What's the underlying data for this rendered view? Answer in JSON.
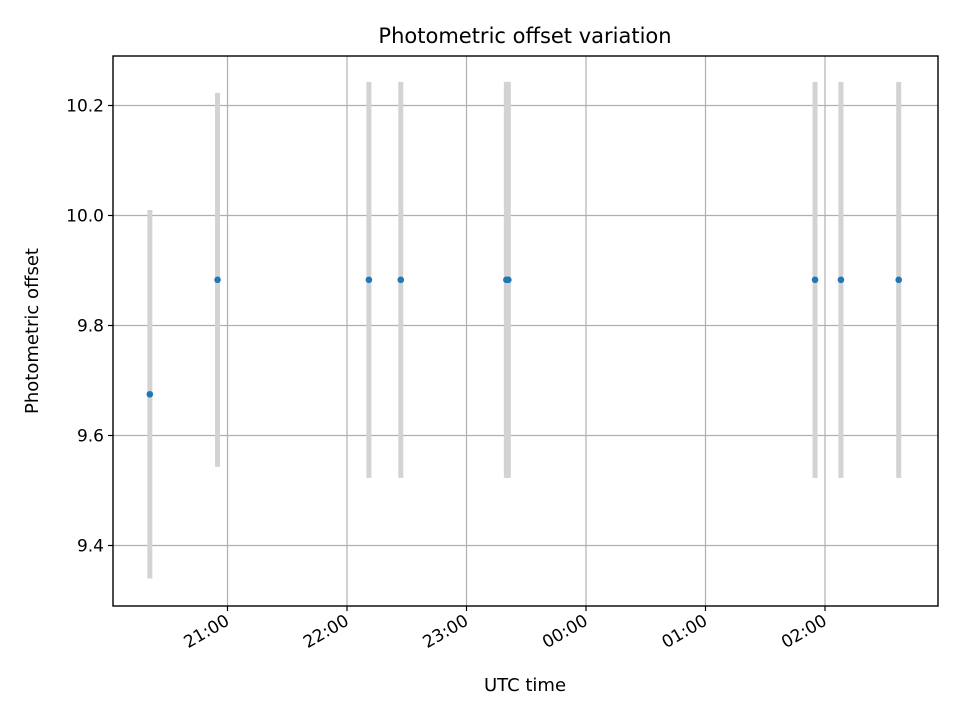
{
  "chart_data": {
    "type": "scatter",
    "title": "Photometric offset variation",
    "xlabel": "UTC time",
    "ylabel": "Photometric offset",
    "x_tick_labels": [
      "21:00",
      "22:00",
      "23:00",
      "00:00",
      "01:00",
      "02:00"
    ],
    "y_tick_labels": [
      "9.4",
      "9.6",
      "9.8",
      "10.0",
      "10.2"
    ],
    "y_ticks": [
      9.4,
      9.6,
      9.8,
      10.0,
      10.2
    ],
    "ylim": [
      9.29,
      10.29
    ],
    "grid": true,
    "x": [
      "20:21",
      "20:55",
      "22:11",
      "22:27",
      "23:20",
      "23:21",
      "01:55",
      "02:08",
      "02:37"
    ],
    "y": [
      9.675,
      9.883,
      9.883,
      9.883,
      9.883,
      9.883,
      9.883,
      9.883,
      9.883
    ],
    "error_low": [
      9.34,
      9.543,
      9.523,
      9.523,
      9.523,
      9.523,
      9.523,
      9.523,
      9.523
    ],
    "error_high": [
      10.01,
      10.223,
      10.243,
      10.243,
      10.243,
      10.243,
      10.243,
      10.243,
      10.243
    ],
    "colors": {
      "marker": "#1f77b4",
      "errorbar": "#d3d3d3",
      "grid": "#b0b0b0"
    }
  }
}
